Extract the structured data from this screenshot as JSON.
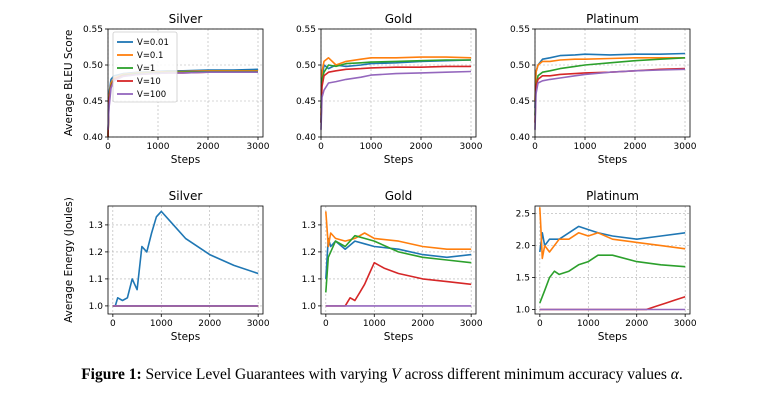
{
  "figure": {
    "caption_label": "Figure 1:",
    "caption_text_a": "Service Level Guarantees with varying",
    "caption_var": "V",
    "caption_text_b": "across different minimum accuracy values",
    "caption_alpha": "α",
    "caption_end": "."
  },
  "colors": {
    "V=0.01": "#1f77b4",
    "V=0.1": "#ff7f0e",
    "V=1": "#2ca02c",
    "V=10": "#d62728",
    "V=100": "#9467bd"
  },
  "chart_data": [
    {
      "type": "line",
      "title": "Silver",
      "xlabel": "Steps",
      "ylabel": "Average BLEU Score",
      "xlim": [
        0,
        3100
      ],
      "ylim": [
        0.4,
        0.55
      ],
      "xticks": [
        0,
        1000,
        2000,
        3000
      ],
      "yticks": [
        "0.40",
        "0.45",
        "0.50",
        "0.55"
      ],
      "grid": true,
      "legend": "top-left",
      "series": [
        {
          "name": "V=0.01",
          "x": [
            0,
            20,
            60,
            120,
            300,
            600,
            900,
            1200,
            1500,
            2000,
            2500,
            3000
          ],
          "y": [
            0.4,
            0.46,
            0.48,
            0.485,
            0.488,
            0.49,
            0.491,
            0.492,
            0.492,
            0.493,
            0.493,
            0.494
          ]
        },
        {
          "name": "V=0.1",
          "x": [
            0,
            20,
            60,
            120,
            300,
            600,
            900,
            1200,
            1500,
            2000,
            2500,
            3000
          ],
          "y": [
            0.4,
            0.455,
            0.475,
            0.482,
            0.487,
            0.489,
            0.49,
            0.491,
            0.491,
            0.492,
            0.492,
            0.492
          ]
        },
        {
          "name": "V=1",
          "x": [
            0,
            20,
            60,
            120,
            300,
            600,
            900,
            1200,
            1500,
            2000,
            2500,
            3000
          ],
          "y": [
            0.4,
            0.45,
            0.472,
            0.48,
            0.486,
            0.488,
            0.489,
            0.49,
            0.49,
            0.491,
            0.491,
            0.491
          ]
        },
        {
          "name": "V=10",
          "x": [
            0,
            20,
            60,
            120,
            300,
            600,
            900,
            1200,
            1500,
            2000,
            2500,
            3000
          ],
          "y": [
            0.4,
            0.45,
            0.47,
            0.48,
            0.485,
            0.487,
            0.488,
            0.489,
            0.489,
            0.49,
            0.49,
            0.49
          ]
        },
        {
          "name": "V=100",
          "x": [
            0,
            20,
            60,
            120,
            300,
            600,
            900,
            1200,
            1500,
            2000,
            2500,
            3000
          ],
          "y": [
            0.41,
            0.44,
            0.468,
            0.478,
            0.484,
            0.487,
            0.488,
            0.489,
            0.489,
            0.49,
            0.49,
            0.49
          ]
        }
      ]
    },
    {
      "type": "line",
      "title": "Gold",
      "xlabel": "Steps",
      "ylabel": "",
      "xlim": [
        0,
        3100
      ],
      "ylim": [
        0.4,
        0.55
      ],
      "xticks": [
        0,
        1000,
        2000,
        3000
      ],
      "yticks": [
        "0.40",
        "0.45",
        "0.50",
        "0.55"
      ],
      "grid": true,
      "series": [
        {
          "name": "V=0.01",
          "x": [
            0,
            20,
            60,
            150,
            300,
            500,
            800,
            1000,
            1500,
            2000,
            2500,
            3000
          ],
          "y": [
            0.42,
            0.48,
            0.5,
            0.495,
            0.5,
            0.498,
            0.5,
            0.502,
            0.503,
            0.505,
            0.506,
            0.507
          ]
        },
        {
          "name": "V=0.1",
          "x": [
            0,
            20,
            60,
            150,
            300,
            500,
            800,
            1000,
            1500,
            2000,
            2500,
            3000
          ],
          "y": [
            0.43,
            0.49,
            0.505,
            0.51,
            0.5,
            0.505,
            0.508,
            0.51,
            0.51,
            0.511,
            0.511,
            0.51
          ]
        },
        {
          "name": "V=1",
          "x": [
            0,
            20,
            60,
            150,
            300,
            500,
            800,
            1000,
            1500,
            2000,
            2500,
            3000
          ],
          "y": [
            0.44,
            0.48,
            0.49,
            0.5,
            0.498,
            0.502,
            0.503,
            0.504,
            0.505,
            0.506,
            0.507,
            0.507
          ]
        },
        {
          "name": "V=10",
          "x": [
            0,
            20,
            60,
            150,
            300,
            500,
            800,
            1000,
            1500,
            2000,
            2500,
            3000
          ],
          "y": [
            0.42,
            0.47,
            0.485,
            0.49,
            0.492,
            0.494,
            0.495,
            0.496,
            0.497,
            0.497,
            0.498,
            0.498
          ]
        },
        {
          "name": "V=100",
          "x": [
            0,
            20,
            60,
            150,
            300,
            500,
            800,
            1000,
            1500,
            2000,
            2500,
            3000
          ],
          "y": [
            0.41,
            0.455,
            0.465,
            0.475,
            0.477,
            0.48,
            0.483,
            0.486,
            0.488,
            0.489,
            0.49,
            0.491
          ]
        }
      ]
    },
    {
      "type": "line",
      "title": "Platinum",
      "xlabel": "Steps",
      "ylabel": "",
      "xlim": [
        0,
        3100
      ],
      "ylim": [
        0.4,
        0.55
      ],
      "xticks": [
        0,
        1000,
        2000,
        3000
      ],
      "yticks": [
        "0.40",
        "0.45",
        "0.50",
        "0.55"
      ],
      "grid": true,
      "series": [
        {
          "name": "V=0.01",
          "x": [
            0,
            20,
            60,
            150,
            300,
            500,
            800,
            1000,
            1500,
            2000,
            2500,
            3000
          ],
          "y": [
            0.44,
            0.49,
            0.5,
            0.508,
            0.51,
            0.513,
            0.514,
            0.515,
            0.514,
            0.515,
            0.515,
            0.516
          ]
        },
        {
          "name": "V=0.1",
          "x": [
            0,
            20,
            60,
            150,
            300,
            500,
            800,
            1000,
            1500,
            2000,
            2500,
            3000
          ],
          "y": [
            0.45,
            0.49,
            0.5,
            0.505,
            0.505,
            0.507,
            0.508,
            0.508,
            0.509,
            0.51,
            0.51,
            0.51
          ]
        },
        {
          "name": "V=1",
          "x": [
            0,
            20,
            60,
            150,
            300,
            500,
            800,
            1000,
            1500,
            2000,
            2500,
            3000
          ],
          "y": [
            0.43,
            0.47,
            0.485,
            0.49,
            0.492,
            0.495,
            0.498,
            0.5,
            0.503,
            0.506,
            0.508,
            0.51
          ]
        },
        {
          "name": "V=10",
          "x": [
            0,
            20,
            60,
            150,
            300,
            500,
            800,
            1000,
            1500,
            2000,
            2500,
            3000
          ],
          "y": [
            0.42,
            0.47,
            0.48,
            0.485,
            0.485,
            0.487,
            0.488,
            0.489,
            0.49,
            0.492,
            0.494,
            0.495
          ]
        },
        {
          "name": "V=100",
          "x": [
            0,
            20,
            60,
            150,
            300,
            500,
            800,
            1000,
            1500,
            2000,
            2500,
            3000
          ],
          "y": [
            0.41,
            0.46,
            0.475,
            0.478,
            0.48,
            0.482,
            0.485,
            0.487,
            0.49,
            0.492,
            0.493,
            0.494
          ]
        }
      ]
    },
    {
      "type": "line",
      "title": "Silver",
      "xlabel": "Steps",
      "ylabel": "Average Energy (Joules)",
      "xlim": [
        -100,
        3100
      ],
      "ylim": [
        0.97,
        1.37
      ],
      "xticks": [
        0,
        1000,
        2000,
        3000
      ],
      "yticks": [
        "1.0",
        "1.1",
        "1.2",
        "1.3"
      ],
      "grid": true,
      "series": [
        {
          "name": "V=0.01",
          "x": [
            0,
            50,
            100,
            200,
            300,
            400,
            500,
            600,
            700,
            800,
            900,
            1000,
            1200,
            1500,
            2000,
            2500,
            3000
          ],
          "y": [
            1.0,
            1.0,
            1.03,
            1.02,
            1.03,
            1.1,
            1.06,
            1.22,
            1.2,
            1.27,
            1.33,
            1.35,
            1.31,
            1.25,
            1.19,
            1.15,
            1.12
          ]
        },
        {
          "name": "V=0.1",
          "x": [
            0,
            3000
          ],
          "y": [
            1.0,
            1.0
          ]
        },
        {
          "name": "V=1",
          "x": [
            0,
            3000
          ],
          "y": [
            1.0,
            1.0
          ]
        },
        {
          "name": "V=10",
          "x": [
            0,
            3000
          ],
          "y": [
            1.0,
            1.0
          ]
        },
        {
          "name": "V=100",
          "x": [
            0,
            3000
          ],
          "y": [
            1.0,
            1.0
          ]
        }
      ]
    },
    {
      "type": "line",
      "title": "Gold",
      "xlabel": "Steps",
      "ylabel": "",
      "xlim": [
        -100,
        3100
      ],
      "ylim": [
        0.97,
        1.37
      ],
      "xticks": [
        0,
        1000,
        2000,
        3000
      ],
      "yticks": [
        "1.0",
        "1.1",
        "1.2",
        "1.3"
      ],
      "grid": true,
      "series": [
        {
          "name": "V=0.01",
          "x": [
            0,
            50,
            100,
            200,
            400,
            600,
            800,
            1000,
            1500,
            2000,
            2500,
            3000
          ],
          "y": [
            1.1,
            1.25,
            1.22,
            1.24,
            1.21,
            1.24,
            1.23,
            1.22,
            1.21,
            1.19,
            1.18,
            1.19
          ]
        },
        {
          "name": "V=0.1",
          "x": [
            0,
            20,
            50,
            100,
            200,
            400,
            600,
            800,
            1000,
            1500,
            2000,
            2500,
            3000
          ],
          "y": [
            1.35,
            1.3,
            1.22,
            1.27,
            1.25,
            1.24,
            1.25,
            1.27,
            1.25,
            1.24,
            1.22,
            1.21,
            1.21
          ]
        },
        {
          "name": "V=1",
          "x": [
            0,
            50,
            100,
            200,
            400,
            600,
            800,
            1000,
            1500,
            2000,
            2500,
            3000
          ],
          "y": [
            1.05,
            1.18,
            1.2,
            1.24,
            1.22,
            1.26,
            1.25,
            1.24,
            1.2,
            1.18,
            1.17,
            1.16
          ]
        },
        {
          "name": "V=10",
          "x": [
            0,
            400,
            500,
            600,
            700,
            800,
            900,
            1000,
            1200,
            1500,
            2000,
            2500,
            3000
          ],
          "y": [
            1.0,
            1.0,
            1.03,
            1.02,
            1.05,
            1.08,
            1.12,
            1.16,
            1.14,
            1.12,
            1.1,
            1.09,
            1.08
          ]
        },
        {
          "name": "V=100",
          "x": [
            0,
            3000
          ],
          "y": [
            1.0,
            1.0
          ]
        }
      ]
    },
    {
      "type": "line",
      "title": "Platinum",
      "xlabel": "Steps",
      "ylabel": "",
      "xlim": [
        -100,
        3100
      ],
      "ylim": [
        0.93,
        2.62
      ],
      "xticks": [
        0,
        1000,
        2000,
        3000
      ],
      "yticks": [
        "1.0",
        "1.5",
        "2.0",
        "2.5"
      ],
      "grid": true,
      "series": [
        {
          "name": "V=0.01",
          "x": [
            0,
            50,
            100,
            200,
            400,
            600,
            800,
            1000,
            1200,
            1500,
            2000,
            2500,
            3000
          ],
          "y": [
            1.9,
            2.2,
            2.0,
            2.1,
            2.1,
            2.2,
            2.3,
            2.25,
            2.2,
            2.15,
            2.1,
            2.15,
            2.2
          ]
        },
        {
          "name": "V=0.1",
          "x": [
            0,
            20,
            50,
            100,
            200,
            400,
            600,
            800,
            1000,
            1200,
            1500,
            2000,
            2500,
            3000
          ],
          "y": [
            2.6,
            2.3,
            1.8,
            2.0,
            1.9,
            2.1,
            2.1,
            2.2,
            2.15,
            2.2,
            2.1,
            2.05,
            2.0,
            1.95
          ]
        },
        {
          "name": "V=1",
          "x": [
            0,
            100,
            200,
            300,
            400,
            600,
            800,
            1000,
            1200,
            1500,
            2000,
            2500,
            3000
          ],
          "y": [
            1.1,
            1.3,
            1.5,
            1.6,
            1.55,
            1.6,
            1.7,
            1.75,
            1.85,
            1.85,
            1.75,
            1.7,
            1.67
          ]
        },
        {
          "name": "V=10",
          "x": [
            0,
            2200,
            2400,
            2600,
            2800,
            3000
          ],
          "y": [
            1.0,
            1.0,
            1.05,
            1.1,
            1.15,
            1.2
          ]
        },
        {
          "name": "V=100",
          "x": [
            0,
            3000
          ],
          "y": [
            1.0,
            1.0
          ]
        }
      ]
    }
  ]
}
